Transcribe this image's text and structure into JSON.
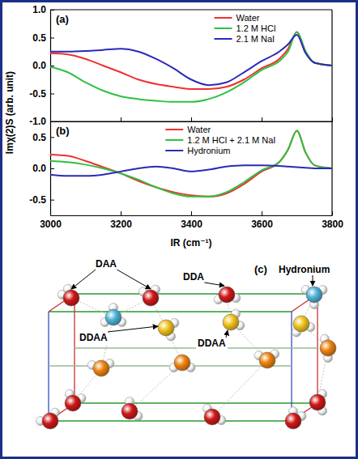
{
  "chart_data": [
    {
      "type": "line",
      "label": "(a)",
      "y_label": "Imχ(2)S (arb. unit)",
      "x": [
        3000,
        3050,
        3100,
        3150,
        3200,
        3250,
        3300,
        3350,
        3400,
        3450,
        3500,
        3550,
        3600,
        3650,
        3675,
        3700,
        3725,
        3750,
        3800
      ],
      "xlim": [
        3000,
        3800
      ],
      "xticks": [
        3000,
        3200,
        3400,
        3600,
        3800
      ],
      "tick_labels": "y",
      "ylim": [
        -1,
        1
      ],
      "yticks": [
        {
          "value": -1,
          "label": "-1.0"
        },
        -0.5,
        {
          "value": 0,
          "label": "0.0"
        },
        0.5,
        {
          "value": 1,
          "label": "1.0"
        }
      ],
      "legend": "upper right",
      "series": [
        {
          "name": "Water",
          "color": "#f03030",
          "values": [
            0.22,
            0.2,
            0.12,
            0.0,
            -0.12,
            -0.25,
            -0.33,
            -0.38,
            -0.42,
            -0.42,
            -0.38,
            -0.25,
            -0.05,
            0.12,
            0.3,
            0.6,
            0.25,
            0.05,
            0.0
          ]
        },
        {
          "name": "1.2 M HCl",
          "color": "#30c040",
          "values": [
            -0.02,
            -0.12,
            -0.3,
            -0.45,
            -0.55,
            -0.6,
            -0.63,
            -0.65,
            -0.65,
            -0.6,
            -0.48,
            -0.3,
            -0.08,
            0.08,
            0.25,
            0.6,
            0.25,
            0.05,
            0.0
          ]
        },
        {
          "name": "2.1 M NaI",
          "color": "#2a2ab8",
          "values": [
            0.25,
            0.25,
            0.26,
            0.28,
            0.3,
            0.25,
            0.12,
            -0.05,
            -0.25,
            -0.35,
            -0.3,
            -0.12,
            0.08,
            0.25,
            0.38,
            0.55,
            0.22,
            0.05,
            0.0
          ]
        }
      ]
    },
    {
      "type": "line",
      "label": "(b)",
      "x_label": "IR (cm⁻¹)",
      "x": [
        3000,
        3050,
        3100,
        3150,
        3200,
        3250,
        3300,
        3350,
        3400,
        3450,
        3500,
        3550,
        3600,
        3650,
        3675,
        3700,
        3725,
        3750,
        3800
      ],
      "xlim": [
        3000,
        3800
      ],
      "xticks": [
        3000,
        3200,
        3400,
        3600,
        3800
      ],
      "ylim": [
        -0.75,
        0.75
      ],
      "yticks": [
        -0.5,
        {
          "value": 0,
          "label": "0.0"
        },
        0.5
      ],
      "legend": "upper right",
      "series": [
        {
          "name": "Water",
          "color": "#f03030",
          "values": [
            0.22,
            0.2,
            0.12,
            0.02,
            -0.08,
            -0.2,
            -0.3,
            -0.38,
            -0.43,
            -0.45,
            -0.4,
            -0.25,
            -0.05,
            0.1,
            0.3,
            0.6,
            0.25,
            0.05,
            0.0
          ]
        },
        {
          "name": "1.2 M HCl + 2.1 M NaI",
          "color": "#30c040",
          "values": [
            0.12,
            0.1,
            0.06,
            0.0,
            -0.08,
            -0.18,
            -0.3,
            -0.4,
            -0.45,
            -0.45,
            -0.38,
            -0.22,
            -0.03,
            0.1,
            0.3,
            0.6,
            0.25,
            0.05,
            0.0
          ]
        },
        {
          "name": "Hydronium",
          "color": "#2a2ab8",
          "values": [
            -0.1,
            -0.12,
            -0.12,
            -0.1,
            -0.05,
            0.0,
            0.03,
            0.0,
            -0.05,
            -0.02,
            0.03,
            0.05,
            0.05,
            0.04,
            0.03,
            0.02,
            0.01,
            0.0,
            0.0
          ]
        }
      ]
    }
  ],
  "diagram": {
    "label": "(c)",
    "labels": [
      "DAA",
      "DDA",
      "DDAA",
      "DDAA",
      "Hydronium"
    ]
  }
}
